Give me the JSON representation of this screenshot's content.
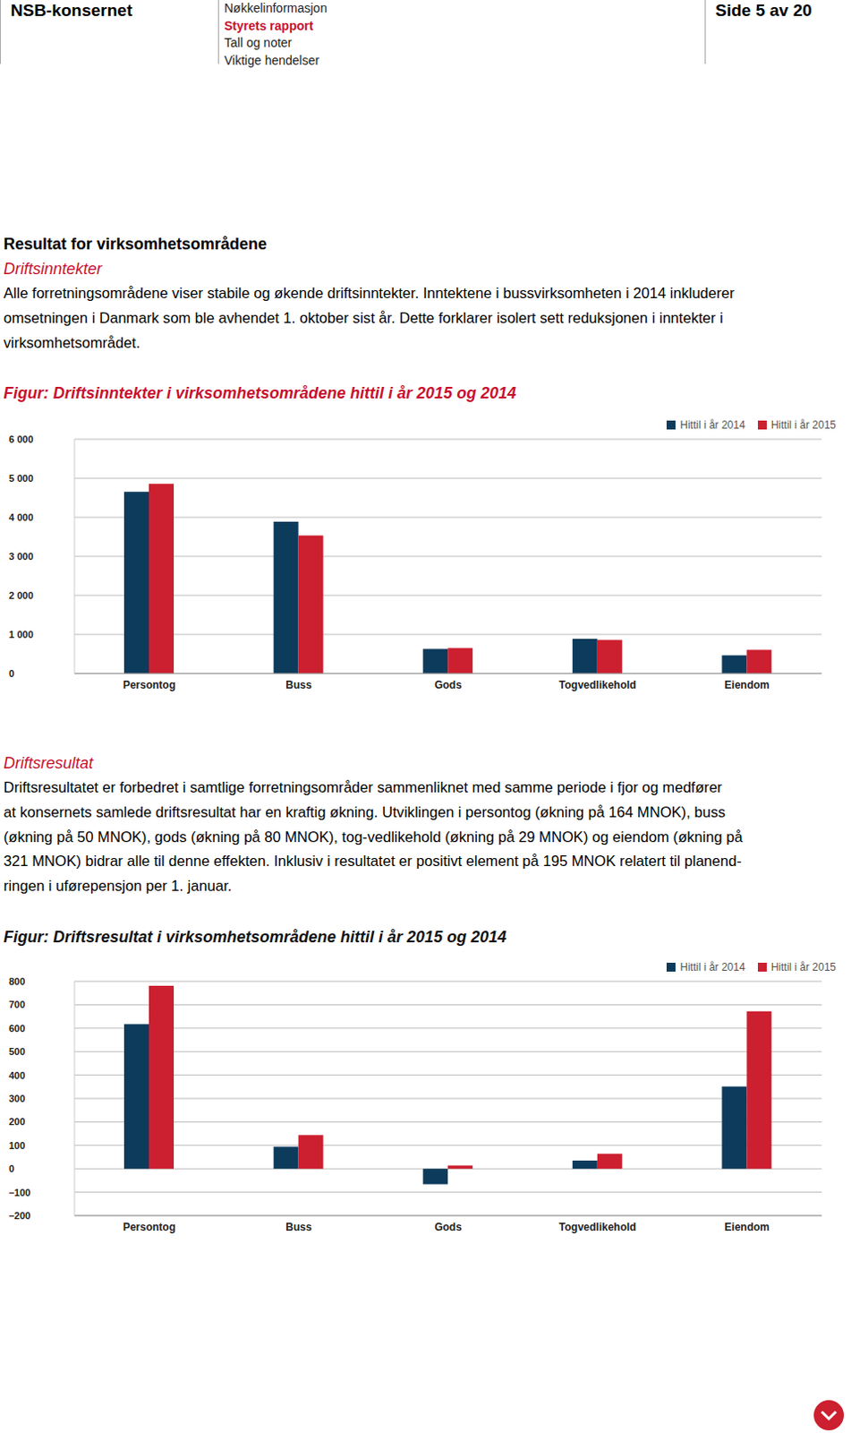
{
  "header": {
    "company": "NSB-konsernet",
    "nav": [
      {
        "label": "Nøkkelinformasjon",
        "active": false
      },
      {
        "label": "Styrets rapport",
        "active": true
      },
      {
        "label": "Tall og noter",
        "active": false
      },
      {
        "label": "Viktige hendelser",
        "active": false
      }
    ],
    "page": "Side 5 av 20"
  },
  "title": "Resultat for virksomhetsområdene",
  "sections": [
    {
      "heading": "Driftsinntekter",
      "lines": [
        "Alle forretningsområdene viser stabile og økende driftsinntekter. Inntektene i bussvirksomheten i 2014 inkluderer",
        "omsetningen i Danmark som ble avhendet 1. oktober sist år. Dette forklarer isolert sett reduksjonen i inntekter i",
        "virksomhetsområdet."
      ]
    },
    {
      "heading": "Driftsresultat",
      "lines": [
        "Driftsresultatet er forbedret i samtlige forretningsområder sammenliknet med samme periode i fjor og medfører",
        "at konsernets samlede driftsresultat har en kraftig økning. Utviklingen i persontog (økning på 164 MNOK), buss",
        "(økning på 50 MNOK), gods (økning på 80 MNOK), tog-vedlikehold (økning på 29 MNOK) og eiendom (økning på",
        "321 MNOK) bidrar alle til denne effekten. Inklusiv i resultatet er positivt element på 195 MNOK relatert til planend-",
        "ringen i uførepensjon per 1. januar."
      ]
    }
  ],
  "chart_data": [
    {
      "type": "bar",
      "title": "Figur: Driftsinntekter i virksomhetsområdene hittil i år 2015 og 2014",
      "categories": [
        "Persontog",
        "Buss",
        "Gods",
        "Togvedlikehold",
        "Eiendom"
      ],
      "series": [
        {
          "name": "Hittil i år 2014",
          "color": "#0d3b5c",
          "values": [
            4651,
            3884,
            628,
            884,
            465
          ]
        },
        {
          "name": "Hittil i år 2015",
          "color": "#cc1f2f",
          "values": [
            4860,
            3535,
            651,
            860,
            605
          ]
        }
      ],
      "ylim": [
        0,
        6000
      ],
      "yticks": [
        0,
        {
          "value": 1000,
          "label": "1 000"
        },
        {
          "value": 2000,
          "label": "2 000"
        },
        {
          "value": 3000,
          "label": "3 000"
        },
        {
          "value": 4000,
          "label": "4 000"
        },
        {
          "value": 5000,
          "label": "5 000"
        },
        {
          "value": 6000,
          "label": "6 000"
        }
      ],
      "grid": true,
      "legend": "upper right"
    },
    {
      "type": "bar",
      "title": "Figur: Driftsresultat i virksomhetsområdene hittil i år 2015 og 2014",
      "categories": [
        "Persontog",
        "Buss",
        "Gods",
        "Togvedlikehold",
        "Eiendom"
      ],
      "series": [
        {
          "name": "Hittil i år 2014",
          "color": "#0d3b5c",
          "values": [
            617,
            94,
            -66,
            35,
            351
          ]
        },
        {
          "name": "Hittil i år 2015",
          "color": "#cc1f2f",
          "values": [
            781,
            144,
            14,
            64,
            672
          ]
        }
      ],
      "ylim": [
        -200,
        800
      ],
      "yticks": [
        {
          "value": -200,
          "label": "–200"
        },
        {
          "value": -100,
          "label": "–100"
        },
        0,
        100,
        200,
        300,
        400,
        500,
        600,
        700,
        800
      ],
      "grid": true,
      "legend": "upper right"
    }
  ]
}
